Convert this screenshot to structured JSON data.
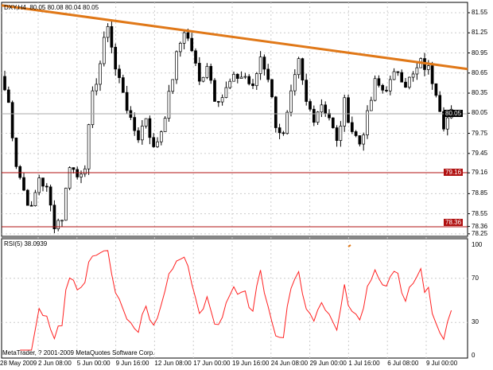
{
  "header": {
    "symbol_label": "DXY,H4",
    "ohlc": "80.05 80.08 80.04 80.05"
  },
  "price_axis": {
    "ticks": [
      "81.55",
      "81.25",
      "80.95",
      "80.65",
      "80.35",
      "80.05",
      "79.75",
      "79.45",
      "79.16",
      "78.85",
      "78.55",
      "78.36",
      "78.25"
    ]
  },
  "price_tags": {
    "current": {
      "value": "80.05",
      "color": "#000000"
    },
    "level1": {
      "value": "79.16",
      "color": "#b01010"
    },
    "level2": {
      "value": "78.36",
      "color": "#b01010"
    }
  },
  "trendline": {
    "start_price": 81.66,
    "end_price": 80.71,
    "color": "#e07818"
  },
  "rsi": {
    "label": "RSI(5) 38.0939",
    "color": "#ff2020",
    "ticks": [
      "100",
      "70",
      "30",
      "0"
    ]
  },
  "time_axis": [
    "28 May 2009",
    "2 Jun 08:00",
    "5 Jun 00:00",
    "9 Jun 16:00",
    "12 Jun 08:00",
    "17 Jun 00:00",
    "19 Jun 16:00",
    "24 Jun 08:00",
    "29 Jun 00:00",
    "1 Jul 16:00",
    "6 Jul 08:00",
    "9 Jul 00:00"
  ],
  "copyright": "MetaTrader, ? 2001-2009 MetaQuotes Software Corp.",
  "closes": [
    80.6,
    80.2,
    79.3,
    78.9,
    78.6,
    79.1,
    78.9,
    78.4,
    78.5,
    79.3,
    79.1,
    79.3,
    80.3,
    80.8,
    81.4,
    80.7,
    80.4,
    79.9,
    79.7,
    80.0,
    79.5,
    79.8,
    80.3,
    80.9,
    81.3,
    81.0,
    80.5,
    80.8,
    80.3,
    80.3,
    80.5,
    80.6,
    80.6,
    80.4,
    80.9,
    80.6,
    79.9,
    79.7,
    80.3,
    80.8,
    80.2,
    80.0,
    80.2,
    80.0,
    79.6,
    80.2,
    79.8,
    79.6,
    80.0,
    80.5,
    80.4,
    80.5,
    80.7,
    80.5,
    80.6,
    80.8,
    80.7,
    80.4,
    79.9,
    80.05
  ]
}
